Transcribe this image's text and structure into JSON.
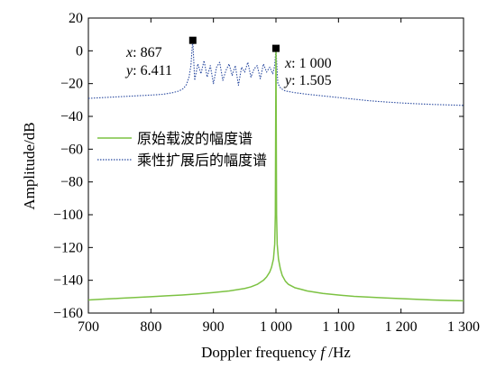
{
  "chart_data": {
    "type": "line",
    "title": "",
    "xlabel_prefix": "Doppler frequency ",
    "xlabel_var": "f",
    "xlabel_suffix": " /Hz",
    "ylabel": "Amplitude/dB",
    "xlim": [
      700,
      1300
    ],
    "ylim": [
      -160,
      20
    ],
    "x_ticks": [
      700,
      800,
      900,
      1000,
      1100,
      1200,
      1300
    ],
    "x_tick_labels": [
      "700",
      "800",
      "900",
      "1 000",
      "1 100",
      "1 200",
      "1 300"
    ],
    "y_ticks": [
      -160,
      -140,
      -120,
      -100,
      -80,
      -60,
      -40,
      -20,
      0,
      20
    ],
    "y_tick_labels": [
      "−160",
      "−140",
      "−120",
      "−100",
      "−80",
      "−60",
      "−40",
      "−20",
      "0",
      "20"
    ],
    "grid": false,
    "legend_position": "center-left",
    "series": [
      {
        "name": "原始载波的幅度谱",
        "color": "#7cc242",
        "style": "solid",
        "x": [
          700,
          725,
          750,
          775,
          800,
          825,
          850,
          875,
          900,
          925,
          950,
          960,
          970,
          980,
          985,
          990,
          993,
          996,
          998,
          999,
          1000,
          1001,
          1002,
          1004,
          1007,
          1010,
          1015,
          1020,
          1030,
          1040,
          1050,
          1075,
          1100,
          1125,
          1150,
          1175,
          1200,
          1225,
          1250,
          1275,
          1300
        ],
        "y": [
          -152,
          -151.5,
          -151,
          -150.5,
          -150,
          -149.5,
          -149,
          -148.3,
          -147.5,
          -146.5,
          -145,
          -144,
          -142.5,
          -140,
          -138,
          -135,
          -132,
          -127,
          -118,
          -100,
          1.5,
          -100,
          -118,
          -127,
          -133,
          -137,
          -140.5,
          -142.5,
          -144.5,
          -145.5,
          -146.5,
          -148,
          -149,
          -149.8,
          -150.3,
          -150.8,
          -151.2,
          -151.6,
          -152,
          -152.3,
          -152.5
        ]
      },
      {
        "name": "乘性扩展后的幅度谱",
        "color": "#2b4ba0",
        "style": "dotted",
        "x": [
          700,
          725,
          750,
          775,
          800,
          820,
          835,
          845,
          852,
          857,
          861,
          864,
          866,
          867,
          870,
          875,
          880,
          885,
          890,
          895,
          900,
          905,
          910,
          915,
          920,
          925,
          930,
          935,
          940,
          945,
          950,
          955,
          960,
          965,
          970,
          975,
          980,
          985,
          990,
          995,
          998,
          1000,
          1003,
          1008,
          1015,
          1030,
          1050,
          1075,
          1100,
          1125,
          1150,
          1175,
          1200,
          1225,
          1250,
          1275,
          1300
        ],
        "y": [
          -29,
          -28.5,
          -28,
          -27.5,
          -27,
          -26.5,
          -25.5,
          -24.5,
          -23,
          -20.5,
          -16,
          -9,
          2,
          6.4,
          -18,
          -8,
          -14,
          -6,
          -16,
          -9,
          -20,
          -10,
          -7,
          -18,
          -12,
          -8,
          -15,
          -9,
          -21,
          -10,
          -13,
          -7,
          -16,
          -11,
          -9,
          -17,
          -8,
          -13,
          -10,
          -14,
          -9,
          1.5,
          -20,
          -23,
          -24.5,
          -25.5,
          -26.5,
          -27.5,
          -28.5,
          -29.5,
          -30.5,
          -31.2,
          -31.8,
          -32.3,
          -32.7,
          -33,
          -33.3
        ]
      }
    ],
    "markers": [
      {
        "x": 867,
        "y": 6.411,
        "label_x": "867",
        "label_y": "6.411"
      },
      {
        "x": 1000,
        "y": 1.505,
        "label_x": "1 000",
        "label_y": "1.505"
      }
    ]
  }
}
